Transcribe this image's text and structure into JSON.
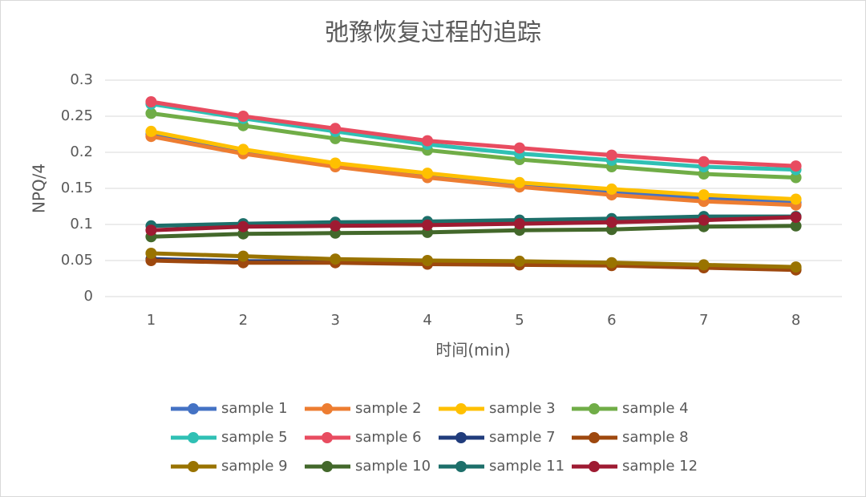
{
  "chart_data": {
    "type": "line",
    "title": "弛豫恢复过程的追踪",
    "x_label": "时间(min)",
    "y_label": "NPQ/4",
    "categories": [
      "1",
      "2",
      "3",
      "4",
      "5",
      "6",
      "7",
      "8"
    ],
    "ylim": [
      0,
      0.3
    ],
    "yticks": [
      0,
      0.05,
      0.1,
      0.15,
      0.2,
      0.25,
      0.3
    ],
    "grid": true,
    "legend": "bottom",
    "series": [
      {
        "name": "sample 1",
        "color": "#4472c4",
        "values": [
          0.225,
          0.2,
          0.182,
          0.167,
          0.155,
          0.144,
          0.136,
          0.13
        ]
      },
      {
        "name": "sample 2",
        "color": "#ed7d31",
        "values": [
          0.222,
          0.198,
          0.18,
          0.165,
          0.152,
          0.141,
          0.132,
          0.127
        ]
      },
      {
        "name": "sample 3",
        "color": "#ffc000",
        "values": [
          0.229,
          0.204,
          0.185,
          0.171,
          0.158,
          0.149,
          0.141,
          0.135
        ]
      },
      {
        "name": "sample 4",
        "color": "#70ad47",
        "values": [
          0.254,
          0.237,
          0.219,
          0.203,
          0.19,
          0.18,
          0.17,
          0.165
        ]
      },
      {
        "name": "sample 5",
        "color": "#2fc0b4",
        "values": [
          0.267,
          0.247,
          0.229,
          0.211,
          0.198,
          0.189,
          0.18,
          0.176
        ]
      },
      {
        "name": "sample 6",
        "color": "#e84c60",
        "values": [
          0.27,
          0.25,
          0.233,
          0.216,
          0.206,
          0.196,
          0.187,
          0.181
        ]
      },
      {
        "name": "sample 7",
        "color": "#203c7c",
        "values": [
          0.052,
          0.049,
          0.049,
          0.047,
          0.046,
          0.045,
          0.042,
          0.04
        ]
      },
      {
        "name": "sample 8",
        "color": "#9e480e",
        "values": [
          0.05,
          0.047,
          0.047,
          0.045,
          0.044,
          0.043,
          0.04,
          0.037
        ]
      },
      {
        "name": "sample 9",
        "color": "#997300",
        "values": [
          0.06,
          0.056,
          0.052,
          0.05,
          0.049,
          0.047,
          0.044,
          0.041
        ]
      },
      {
        "name": "sample 10",
        "color": "#43682b",
        "values": [
          0.083,
          0.087,
          0.088,
          0.089,
          0.092,
          0.093,
          0.097,
          0.098
        ]
      },
      {
        "name": "sample 11",
        "color": "#1d6f6a",
        "values": [
          0.098,
          0.101,
          0.103,
          0.104,
          0.106,
          0.108,
          0.111,
          0.111
        ]
      },
      {
        "name": "sample 12",
        "color": "#9e1b32",
        "values": [
          0.092,
          0.097,
          0.098,
          0.099,
          0.101,
          0.103,
          0.106,
          0.11
        ]
      }
    ]
  }
}
